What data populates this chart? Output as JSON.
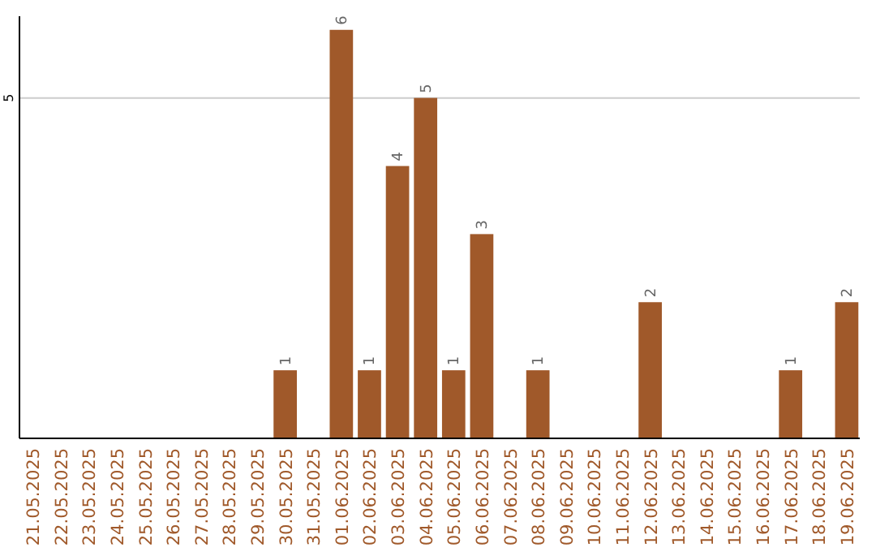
{
  "chart_data": {
    "type": "bar",
    "categories": [
      "21.05.2025",
      "22.05.2025",
      "23.05.2025",
      "24.05.2025",
      "25.05.2025",
      "26.05.2025",
      "27.05.2025",
      "28.05.2025",
      "29.05.2025",
      "30.05.2025",
      "31.05.2025",
      "01.06.2025",
      "02.06.2025",
      "03.06.2025",
      "04.06.2025",
      "05.06.2025",
      "06.06.2025",
      "07.06.2025",
      "08.06.2025",
      "09.06.2025",
      "10.06.2025",
      "11.06.2025",
      "12.06.2025",
      "13.06.2025",
      "14.06.2025",
      "15.06.2025",
      "16.06.2025",
      "17.06.2025",
      "18.06.2025",
      "19.06.2025"
    ],
    "values": [
      0,
      0,
      0,
      0,
      0,
      0,
      0,
      0,
      0,
      1,
      0,
      6,
      1,
      4,
      5,
      1,
      3,
      0,
      1,
      0,
      0,
      0,
      2,
      0,
      0,
      0,
      0,
      1,
      0,
      2
    ],
    "value_labels": [
      null,
      null,
      null,
      null,
      null,
      null,
      null,
      null,
      null,
      "1",
      null,
      "6",
      "1",
      "4",
      "5",
      "1",
      "3",
      null,
      "1",
      null,
      null,
      null,
      "2",
      null,
      null,
      null,
      null,
      "1",
      null,
      "2"
    ],
    "color": "#a0592a",
    "ylim": [
      0,
      6.2
    ],
    "yticks": [
      5
    ],
    "grid": "y"
  }
}
